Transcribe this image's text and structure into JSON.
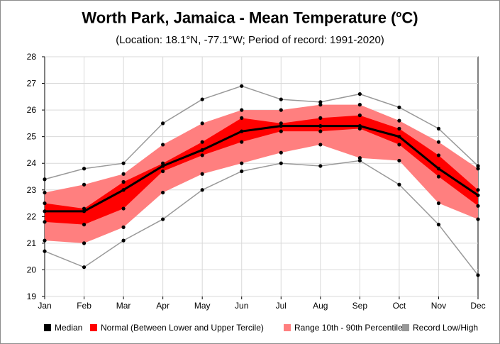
{
  "chart_data": {
    "type": "line",
    "title": "Worth Park, Jamaica - Mean Temperature (",
    "title_sup": "o",
    "title_suffix": "C)",
    "subtitle": "(Location: 18.1°N, -77.1°W; Period of record: 1991-2020)",
    "categories": [
      "Jan",
      "Feb",
      "Mar",
      "Apr",
      "May",
      "Jun",
      "Jul",
      "Aug",
      "Sep",
      "Oct",
      "Nov",
      "Dec"
    ],
    "ylim": [
      19,
      28
    ],
    "yticks": [
      19,
      20,
      21,
      22,
      23,
      24,
      25,
      26,
      27,
      28
    ],
    "grid": true,
    "legend_placement": "bottom",
    "series": [
      {
        "name": "Median",
        "color": "#000000",
        "values": [
          22.2,
          22.2,
          23.0,
          23.9,
          24.5,
          25.2,
          25.4,
          25.4,
          25.4,
          25.0,
          23.8,
          22.8
        ]
      },
      {
        "name": "Normal (Between Lower and Upper Tercile)",
        "color": "#ff0000",
        "lower": [
          21.8,
          21.7,
          22.3,
          23.7,
          24.3,
          24.8,
          25.2,
          25.2,
          25.3,
          24.7,
          23.5,
          22.4
        ],
        "upper": [
          22.5,
          22.3,
          23.3,
          24.0,
          24.8,
          25.7,
          25.5,
          25.7,
          25.8,
          25.3,
          24.3,
          23.0
        ]
      },
      {
        "name": "Range 10th - 90th Percentile",
        "color": "#ff7f7f",
        "lower": [
          21.1,
          21.0,
          21.6,
          22.9,
          23.6,
          24.0,
          24.4,
          24.7,
          24.2,
          24.1,
          22.5,
          21.9
        ],
        "upper": [
          22.9,
          23.2,
          23.6,
          24.7,
          25.5,
          26.0,
          26.0,
          26.2,
          26.2,
          25.6,
          24.8,
          23.8
        ]
      },
      {
        "name": "Record Low/High",
        "color": "#999999",
        "lower": [
          20.7,
          20.1,
          21.1,
          21.9,
          23.0,
          23.7,
          24.0,
          23.9,
          24.1,
          23.2,
          21.7,
          19.8
        ],
        "upper": [
          23.4,
          23.8,
          24.0,
          25.5,
          26.4,
          26.9,
          26.4,
          26.3,
          26.6,
          26.1,
          25.3,
          23.9
        ]
      }
    ]
  }
}
